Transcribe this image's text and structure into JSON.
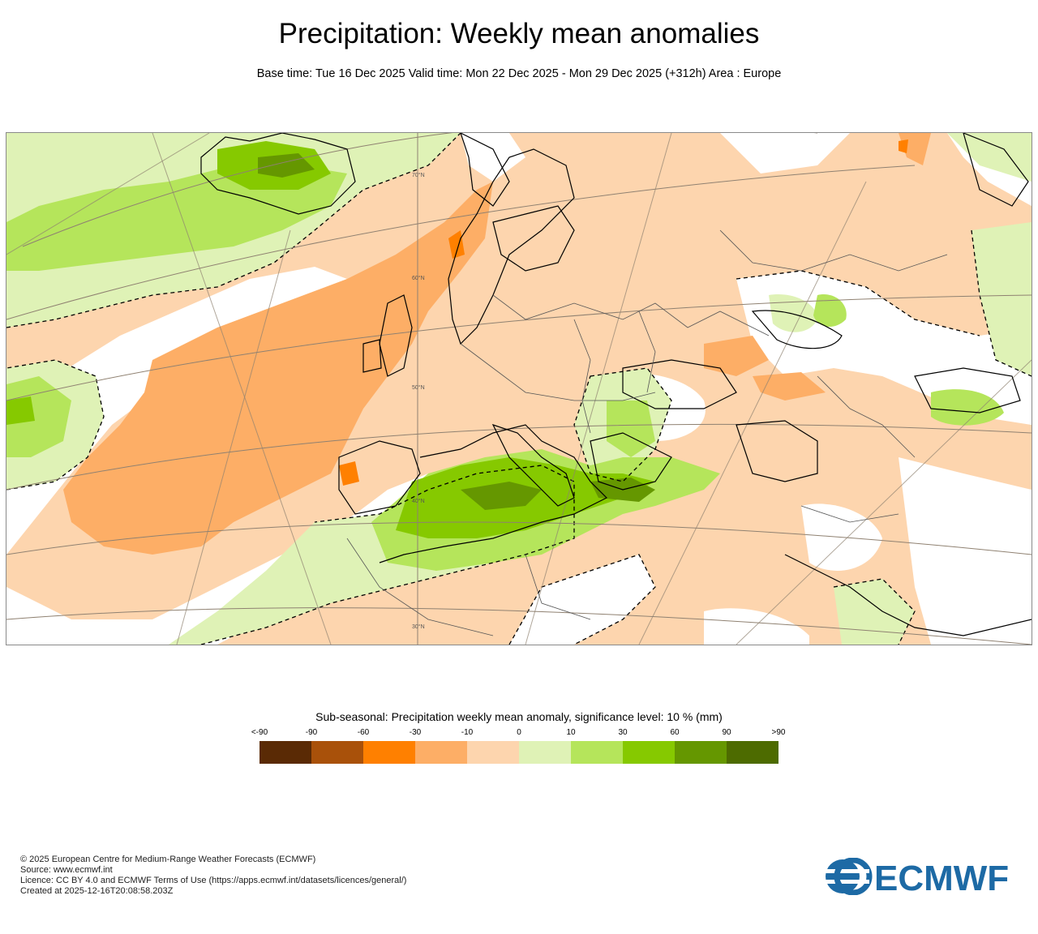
{
  "header": {
    "title": "Precipitation: Weekly mean anomalies",
    "subtitle": "Base time: Tue 16 Dec 2025 Valid time: Mon 22 Dec 2025 - Mon 29 Dec 2025 (+312h) Area : Europe"
  },
  "map": {
    "lat_labels": [
      "70°N",
      "60°N",
      "50°N",
      "40°N",
      "30°N"
    ]
  },
  "legend": {
    "title": "Sub-seasonal: Precipitation weekly mean anomaly, significance level: 10 % (mm)",
    "ticks": [
      "<-90",
      "-90",
      "-60",
      "-30",
      "-10",
      "0",
      "10",
      "30",
      "60",
      "90",
      ">90"
    ],
    "colors": [
      "#5a2a05",
      "#a9510a",
      "#ff8000",
      "#fdae66",
      "#fdd5ae",
      "#dff2b6",
      "#b5e55b",
      "#86c900",
      "#659700",
      "#4d6b00"
    ]
  },
  "footer": {
    "copyright": "© 2025 European Centre for Medium-Range Weather Forecasts (ECMWF)",
    "source": "Source: www.ecmwf.int",
    "licence": "Licence: CC BY 4.0 and ECMWF Terms of Use (https://apps.ecmwf.int/datasets/licences/general/)",
    "created": "Created at 2025-12-16T20:08:58.203Z"
  },
  "logo": {
    "text": "ECMWF",
    "color": "#1d6aa5"
  }
}
